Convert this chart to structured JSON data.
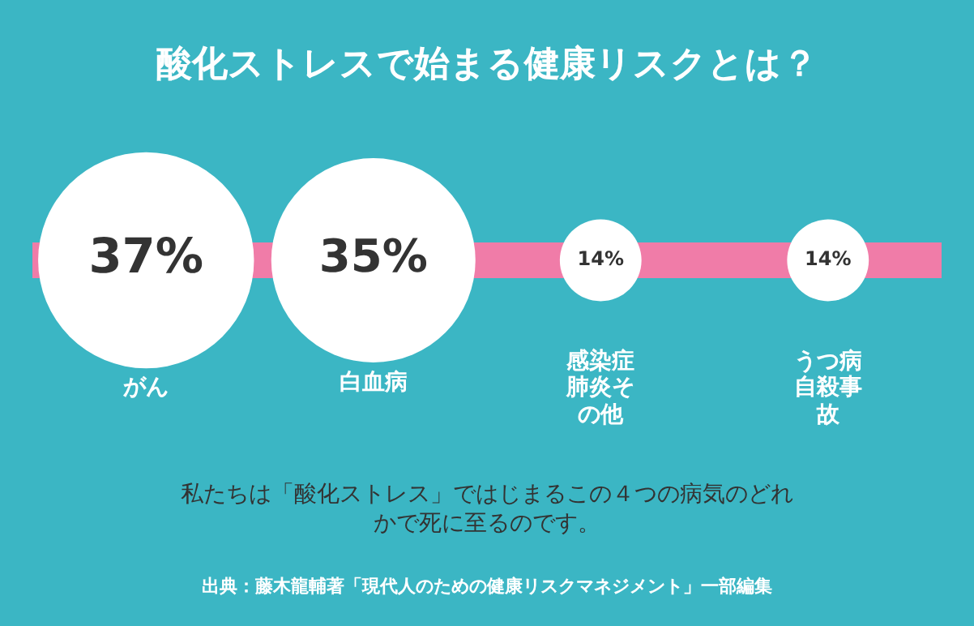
{
  "chart_data": {
    "type": "other",
    "title": "酸化ストレスで始まる健康リスクとは？",
    "categories": [
      "がん",
      "白血病",
      "感染症肺炎その他",
      "うつ病自殺事故"
    ],
    "values": [
      37,
      35,
      14,
      14
    ],
    "value_labels": [
      "37%",
      "35%",
      "14%",
      "14%"
    ],
    "color": "#ffffff",
    "annotations": [
      "私たちは「酸化ストレス」ではじまるこの４つの病気のどれかで死に至るのです。",
      "出典：藤木龍輔著「現代人のための健康リスクマネジメント」一部編集"
    ]
  }
}
